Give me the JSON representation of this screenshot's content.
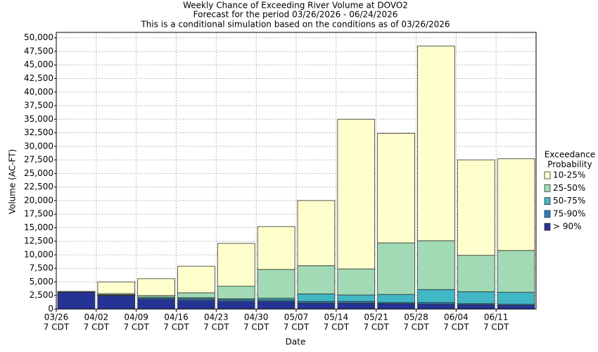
{
  "chart_data": {
    "type": "stacked_bar",
    "title": [
      "Weekly Chance of Exceeding River Volume at DOVO2",
      "Forecast for the period 03/26/2026 - 06/24/2026",
      "This is a conditional simulation based on the conditions as of 03/26/2026"
    ],
    "xlabel": "Date",
    "ylabel": "Volume (AC-FT)",
    "categories": [
      "03/26",
      "04/02",
      "04/09",
      "04/16",
      "04/23",
      "04/30",
      "05/07",
      "05/14",
      "05/21",
      "05/28",
      "06/04",
      "06/11"
    ],
    "x_tick_sublabel": "7 CDT",
    "legend_title": [
      "Exceedance",
      "Probability"
    ],
    "series": [
      {
        "name": "> 90%",
        "color": "#253494",
        "values": [
          3100,
          2450,
          1800,
          1600,
          1400,
          1400,
          1100,
          1100,
          1000,
          900,
          800,
          700
        ]
      },
      {
        "name": "75-90%",
        "color": "#2c7fb8",
        "values": [
          50,
          100,
          200,
          300,
          300,
          300,
          300,
          300,
          200,
          300,
          200,
          200
        ]
      },
      {
        "name": "50-75%",
        "color": "#41b6c4",
        "values": [
          25,
          100,
          200,
          200,
          200,
          300,
          1400,
          1200,
          1500,
          2400,
          2200,
          2200
        ]
      },
      {
        "name": "25-50%",
        "color": "#a1dab4",
        "values": [
          25,
          200,
          300,
          900,
          2300,
          5300,
          5200,
          4800,
          9500,
          9000,
          6700,
          7700
        ]
      },
      {
        "name": "10-25%",
        "color": "#ffffcc",
        "values": [
          50,
          2150,
          3100,
          4900,
          7900,
          7900,
          12000,
          27600,
          20200,
          35900,
          17600,
          16900
        ]
      }
    ],
    "ylim": [
      0,
      51000
    ],
    "yticks": [
      0,
      {
        "value": 2500,
        "label": "2,500"
      },
      {
        "value": 5000,
        "label": "5,000"
      },
      {
        "value": 7500,
        "label": "7,500"
      },
      {
        "value": 10000,
        "label": "10,000"
      },
      {
        "value": 12500,
        "label": "12,500"
      },
      {
        "value": 15000,
        "label": "15,000"
      },
      {
        "value": 17500,
        "label": "17,500"
      },
      {
        "value": 20000,
        "label": "20,000"
      },
      {
        "value": 22500,
        "label": "22,500"
      },
      {
        "value": 25000,
        "label": "25,000"
      },
      {
        "value": 27500,
        "label": "27,500"
      },
      {
        "value": 30000,
        "label": "30,000"
      },
      {
        "value": 32500,
        "label": "32,500"
      },
      {
        "value": 35000,
        "label": "35,000"
      },
      {
        "value": 37500,
        "label": "37,500"
      },
      {
        "value": 40000,
        "label": "40,000"
      },
      {
        "value": 42500,
        "label": "42,500"
      },
      {
        "value": 45000,
        "label": "45,000"
      },
      {
        "value": 47500,
        "label": "47,500"
      },
      {
        "value": 50000,
        "label": "50,000"
      }
    ],
    "grid": true
  }
}
